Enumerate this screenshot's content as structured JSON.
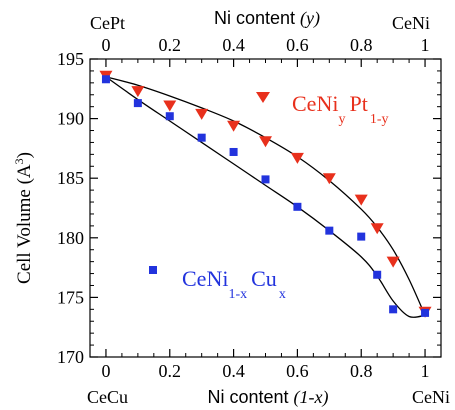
{
  "chart_data": {
    "type": "scatter",
    "ylabel_main": "Cell Volume (A",
    "ylabel_sup": "3",
    "ylabel_close": ")",
    "top_axis": {
      "label_prefix": "Ni content ",
      "label_var": "(y)",
      "left_end": "CePt",
      "right_end": "CeNi",
      "ticks": [
        "0",
        "0.2",
        "0.4",
        "0.6",
        "0.8",
        "1"
      ],
      "tick_values": [
        0,
        0.2,
        0.4,
        0.6,
        0.8,
        1
      ]
    },
    "bottom_axis": {
      "label_prefix": "Ni content ",
      "label_var": "(1-x)",
      "left_end": "CeCu",
      "right_end": "CeNi",
      "ticks": [
        "0",
        "0.2",
        "0.4",
        "0.6",
        "0.8",
        "1"
      ],
      "tick_values": [
        0,
        0.2,
        0.4,
        0.6,
        0.8,
        1
      ]
    },
    "y_ticks": [
      "170",
      "175",
      "180",
      "185",
      "190",
      "195"
    ],
    "y_tick_values": [
      170,
      175,
      180,
      185,
      190,
      195
    ],
    "xlim": [
      -0.05,
      1.05
    ],
    "ylim": [
      170,
      195
    ],
    "grid": false,
    "series": [
      {
        "name_main": "CeNi",
        "name_sub1": "y",
        "name_mid": "Pt",
        "name_sub2": "1-y",
        "color": "#e8301c",
        "marker": "triangle-down",
        "points": [
          [
            0,
            193.6
          ],
          [
            0.1,
            192.3
          ],
          [
            0.2,
            191.1
          ],
          [
            0.3,
            190.4
          ],
          [
            0.4,
            189.4
          ],
          [
            0.5,
            188.1
          ],
          [
            0.6,
            186.7
          ],
          [
            0.7,
            185.0
          ],
          [
            0.8,
            183.2
          ],
          [
            0.85,
            180.8
          ],
          [
            0.9,
            178.0
          ],
          [
            1.0,
            173.8
          ]
        ],
        "fit": [
          [
            0,
            193.5
          ],
          [
            0.1,
            192.8
          ],
          [
            0.2,
            191.9
          ],
          [
            0.3,
            190.9
          ],
          [
            0.4,
            189.8
          ],
          [
            0.5,
            188.4
          ],
          [
            0.6,
            186.8
          ],
          [
            0.7,
            184.8
          ],
          [
            0.8,
            182.4
          ],
          [
            0.85,
            180.9
          ],
          [
            0.9,
            179.0
          ],
          [
            0.95,
            176.5
          ],
          [
            1.0,
            173.5
          ]
        ]
      },
      {
        "name_main": "CeNi",
        "name_sub1": "1-x",
        "name_mid": "Cu",
        "name_sub2": "x",
        "color": "#2233dd",
        "marker": "square",
        "points": [
          [
            0,
            193.3
          ],
          [
            0.1,
            191.3
          ],
          [
            0.2,
            190.2
          ],
          [
            0.3,
            188.4
          ],
          [
            0.4,
            187.2
          ],
          [
            0.5,
            184.9
          ],
          [
            0.6,
            182.6
          ],
          [
            0.7,
            180.6
          ],
          [
            0.8,
            180.1
          ],
          [
            0.85,
            176.9
          ],
          [
            0.9,
            174.0
          ],
          [
            1.0,
            173.7
          ]
        ],
        "fit": [
          [
            0,
            193.5
          ],
          [
            0.1,
            191.6
          ],
          [
            0.2,
            189.8
          ],
          [
            0.3,
            188.0
          ],
          [
            0.4,
            186.2
          ],
          [
            0.5,
            184.4
          ],
          [
            0.6,
            182.6
          ],
          [
            0.7,
            180.6
          ],
          [
            0.8,
            178.4
          ],
          [
            0.85,
            176.8
          ],
          [
            0.9,
            174.7
          ],
          [
            0.95,
            173.4
          ],
          [
            1.0,
            173.5
          ]
        ]
      }
    ]
  }
}
